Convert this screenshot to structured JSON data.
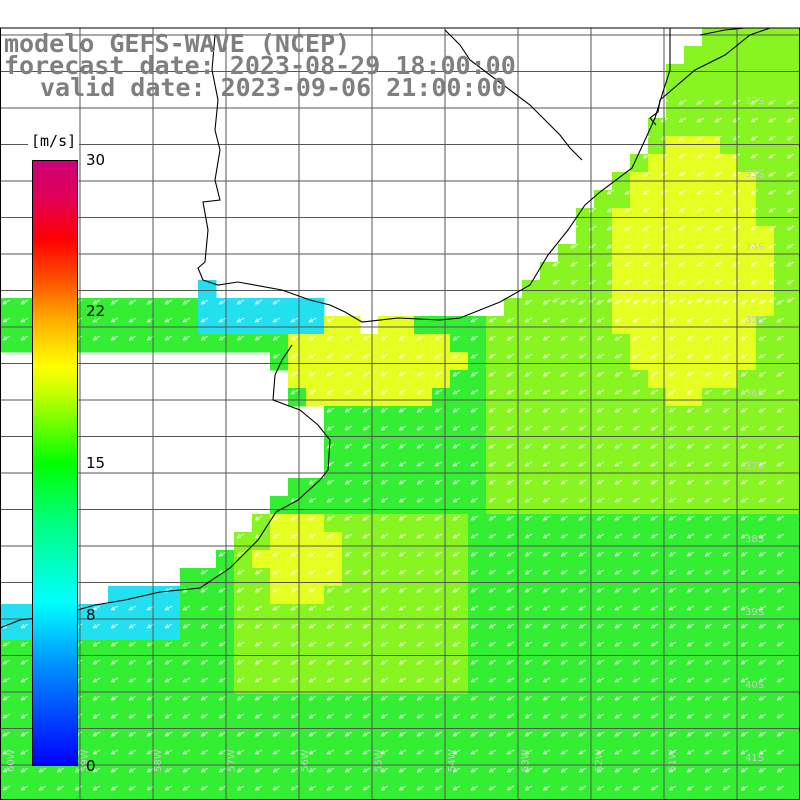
{
  "title": {
    "model": "modelo GEFS-WAVE (NCEP)",
    "forecast": "forecast date: 2023-08-29 18:00:00",
    "valid": "valid date: 2023-09-06 21:00:00"
  },
  "colorbar": {
    "unit": "[m/s]",
    "ticks": [
      "30",
      "22",
      "15",
      "8",
      "0"
    ],
    "colors": [
      "#0000ff",
      "#00ffff",
      "#00ff00",
      "#ffff00",
      "#ff0000",
      "#cc0077"
    ]
  },
  "map": {
    "lat_labels": [
      "32S",
      "33S",
      "34S",
      "35S",
      "36S",
      "37S",
      "38S",
      "39S",
      "40S",
      "41S"
    ],
    "lon_labels": [
      "60W",
      "59W",
      "58W",
      "57W",
      "56W",
      "55W",
      "54W",
      "53W",
      "52W",
      "51W"
    ],
    "wind_direction": "southwest",
    "field_colors": {
      "cyan": "#22e0f0",
      "green": "#33ee33",
      "lime": "#88f522",
      "yellow": "#e6ff22"
    }
  }
}
